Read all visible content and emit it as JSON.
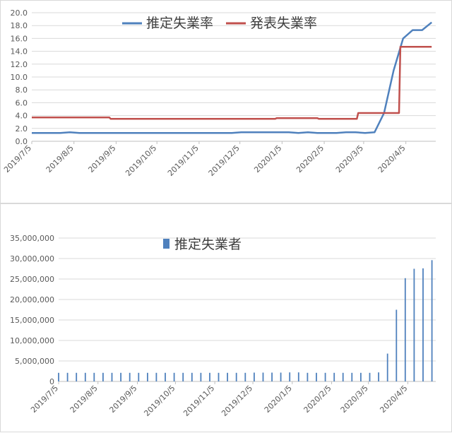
{
  "charts": [
    {
      "type": "line",
      "x_labels": [
        "2019/7/5",
        "2019/8/5",
        "2019/9/5",
        "2019/10/5",
        "2019/11/5",
        "2019/12/5",
        "2020/1/5",
        "2020/2/5",
        "2020/3/5",
        "2020/4/5"
      ],
      "y_ticks": [
        "0.0",
        "2.0",
        "4.0",
        "6.0",
        "8.0",
        "10.0",
        "12.0",
        "14.0",
        "16.0",
        "18.0",
        "20.0"
      ],
      "ylim": [
        0,
        20
      ],
      "grid": "horizontal",
      "legend_position": "top-center",
      "series": [
        {
          "name": "推定失業率",
          "color": "#4f81bd",
          "points": [
            [
              "2019/7/5",
              1.3
            ],
            [
              "2019/7/12",
              1.3
            ],
            [
              "2019/7/19",
              1.3
            ],
            [
              "2019/7/26",
              1.3
            ],
            [
              "2019/8/2",
              1.4
            ],
            [
              "2019/8/9",
              1.3
            ],
            [
              "2019/8/16",
              1.3
            ],
            [
              "2019/8/23",
              1.3
            ],
            [
              "2019/8/30",
              1.3
            ],
            [
              "2019/9/6",
              1.3
            ],
            [
              "2019/9/13",
              1.3
            ],
            [
              "2019/9/20",
              1.3
            ],
            [
              "2019/9/27",
              1.3
            ],
            [
              "2019/10/4",
              1.3
            ],
            [
              "2019/10/11",
              1.3
            ],
            [
              "2019/10/18",
              1.3
            ],
            [
              "2019/10/25",
              1.3
            ],
            [
              "2019/11/1",
              1.3
            ],
            [
              "2019/11/8",
              1.3
            ],
            [
              "2019/11/15",
              1.3
            ],
            [
              "2019/11/22",
              1.3
            ],
            [
              "2019/11/29",
              1.3
            ],
            [
              "2019/12/6",
              1.4
            ],
            [
              "2019/12/13",
              1.4
            ],
            [
              "2019/12/20",
              1.4
            ],
            [
              "2019/12/27",
              1.4
            ],
            [
              "2020/1/3",
              1.4
            ],
            [
              "2020/1/10",
              1.4
            ],
            [
              "2020/1/17",
              1.3
            ],
            [
              "2020/1/24",
              1.4
            ],
            [
              "2020/1/31",
              1.3
            ],
            [
              "2020/2/7",
              1.3
            ],
            [
              "2020/2/14",
              1.3
            ],
            [
              "2020/2/21",
              1.4
            ],
            [
              "2020/2/28",
              1.4
            ],
            [
              "2020/3/6",
              1.3
            ],
            [
              "2020/3/13",
              1.4
            ],
            [
              "2020/3/20",
              4.4
            ],
            [
              "2020/3/27",
              11.0
            ],
            [
              "2020/4/3",
              16.0
            ],
            [
              "2020/4/10",
              17.3
            ],
            [
              "2020/4/17",
              17.3
            ],
            [
              "2020/4/24",
              18.5
            ]
          ]
        },
        {
          "name": "発表失業率",
          "color": "#c0504d",
          "points": [
            [
              "2019/7/5",
              3.7
            ],
            [
              "2019/8/31",
              3.7
            ],
            [
              "2019/9/1",
              3.5
            ],
            [
              "2019/11/30",
              3.5
            ],
            [
              "2019/12/1",
              3.5
            ],
            [
              "2019/12/31",
              3.5
            ],
            [
              "2020/1/1",
              3.6
            ],
            [
              "2020/1/31",
              3.6
            ],
            [
              "2020/2/1",
              3.5
            ],
            [
              "2020/2/29",
              3.5
            ],
            [
              "2020/3/1",
              4.4
            ],
            [
              "2020/3/31",
              4.4
            ],
            [
              "2020/4/1",
              14.7
            ],
            [
              "2020/4/24",
              14.7
            ]
          ]
        }
      ]
    },
    {
      "type": "bar",
      "x_labels": [
        "2019/7/5",
        "2019/8/5",
        "2019/9/5",
        "2019/10/5",
        "2019/11/5",
        "2019/12/5",
        "2020/1/5",
        "2020/2/5",
        "2020/3/5",
        "2020/4/5"
      ],
      "y_ticks": [
        "0",
        "5,000,000",
        "10,000,000",
        "15,000,000",
        "20,000,000",
        "25,000,000",
        "30,000,000",
        "35,000,000"
      ],
      "ylim": [
        0,
        35000000
      ],
      "grid": "horizontal",
      "legend_position": "top-left",
      "series": [
        {
          "name": "推定失業者",
          "color": "#4f81bd",
          "points": [
            [
              "2019/7/5",
              2100000
            ],
            [
              "2019/7/12",
              2100000
            ],
            [
              "2019/7/19",
              2100000
            ],
            [
              "2019/7/26",
              2100000
            ],
            [
              "2019/8/2",
              2100000
            ],
            [
              "2019/8/9",
              2100000
            ],
            [
              "2019/8/16",
              2100000
            ],
            [
              "2019/8/23",
              2100000
            ],
            [
              "2019/8/30",
              2100000
            ],
            [
              "2019/9/6",
              2100000
            ],
            [
              "2019/9/13",
              2100000
            ],
            [
              "2019/9/20",
              2100000
            ],
            [
              "2019/9/27",
              2100000
            ],
            [
              "2019/10/4",
              2100000
            ],
            [
              "2019/10/11",
              2100000
            ],
            [
              "2019/10/18",
              2100000
            ],
            [
              "2019/10/25",
              2100000
            ],
            [
              "2019/11/1",
              2100000
            ],
            [
              "2019/11/8",
              2100000
            ],
            [
              "2019/11/15",
              2100000
            ],
            [
              "2019/11/22",
              2100000
            ],
            [
              "2019/11/29",
              2100000
            ],
            [
              "2019/12/6",
              2150000
            ],
            [
              "2019/12/13",
              2150000
            ],
            [
              "2019/12/20",
              2150000
            ],
            [
              "2019/12/27",
              2150000
            ],
            [
              "2020/1/3",
              2200000
            ],
            [
              "2020/1/10",
              2200000
            ],
            [
              "2020/1/17",
              2100000
            ],
            [
              "2020/1/24",
              2100000
            ],
            [
              "2020/1/31",
              2100000
            ],
            [
              "2020/2/7",
              2100000
            ],
            [
              "2020/2/14",
              2100000
            ],
            [
              "2020/2/21",
              2100000
            ],
            [
              "2020/2/28",
              2100000
            ],
            [
              "2020/3/6",
              2100000
            ],
            [
              "2020/3/13",
              2200000
            ],
            [
              "2020/3/20",
              6800000
            ],
            [
              "2020/3/27",
              17500000
            ],
            [
              "2020/4/3",
              25200000
            ],
            [
              "2020/4/10",
              27500000
            ],
            [
              "2020/4/17",
              27600000
            ],
            [
              "2020/4/24",
              29600000
            ]
          ]
        }
      ]
    }
  ]
}
